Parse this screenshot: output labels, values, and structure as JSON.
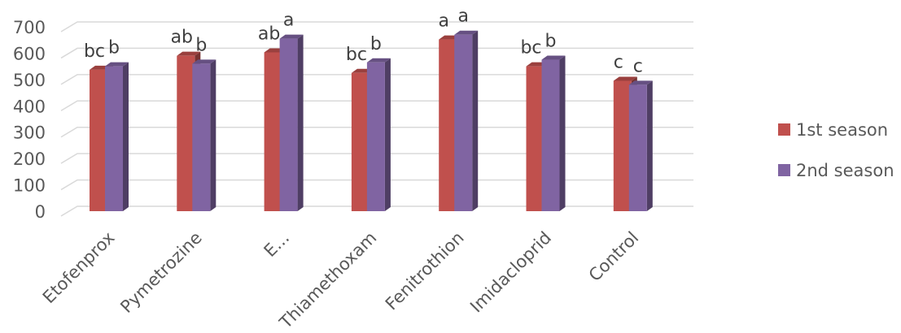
{
  "chart_data": {
    "type": "bar",
    "style": "3d-clustered-column",
    "categories": [
      "Etofenprox",
      "Pymetrozine",
      "E...",
      "Thiamethoxam",
      "Fenitrothion",
      "Imidacloprid",
      "Control"
    ],
    "series": [
      {
        "name": "1st season",
        "color": "#c0504d",
        "values": [
          537,
          590,
          603,
          525,
          652,
          550,
          495
        ]
      },
      {
        "name": "2nd season",
        "color": "#8064a2",
        "values": [
          550,
          560,
          655,
          565,
          670,
          575,
          480
        ]
      }
    ],
    "significance_labels": [
      [
        "bc",
        "b"
      ],
      [
        "ab",
        "b"
      ],
      [
        "ab",
        "a"
      ],
      [
        "bc",
        "b"
      ],
      [
        "a",
        "a"
      ],
      [
        "bc",
        "b"
      ],
      [
        "c",
        "c"
      ]
    ],
    "y_ticks": [
      "0",
      "100",
      "200",
      "300",
      "400",
      "500",
      "600",
      "700"
    ],
    "ylim": [
      0,
      700
    ],
    "grid": true,
    "legend_position": "right",
    "title": "",
    "xlabel": "",
    "ylabel": ""
  }
}
